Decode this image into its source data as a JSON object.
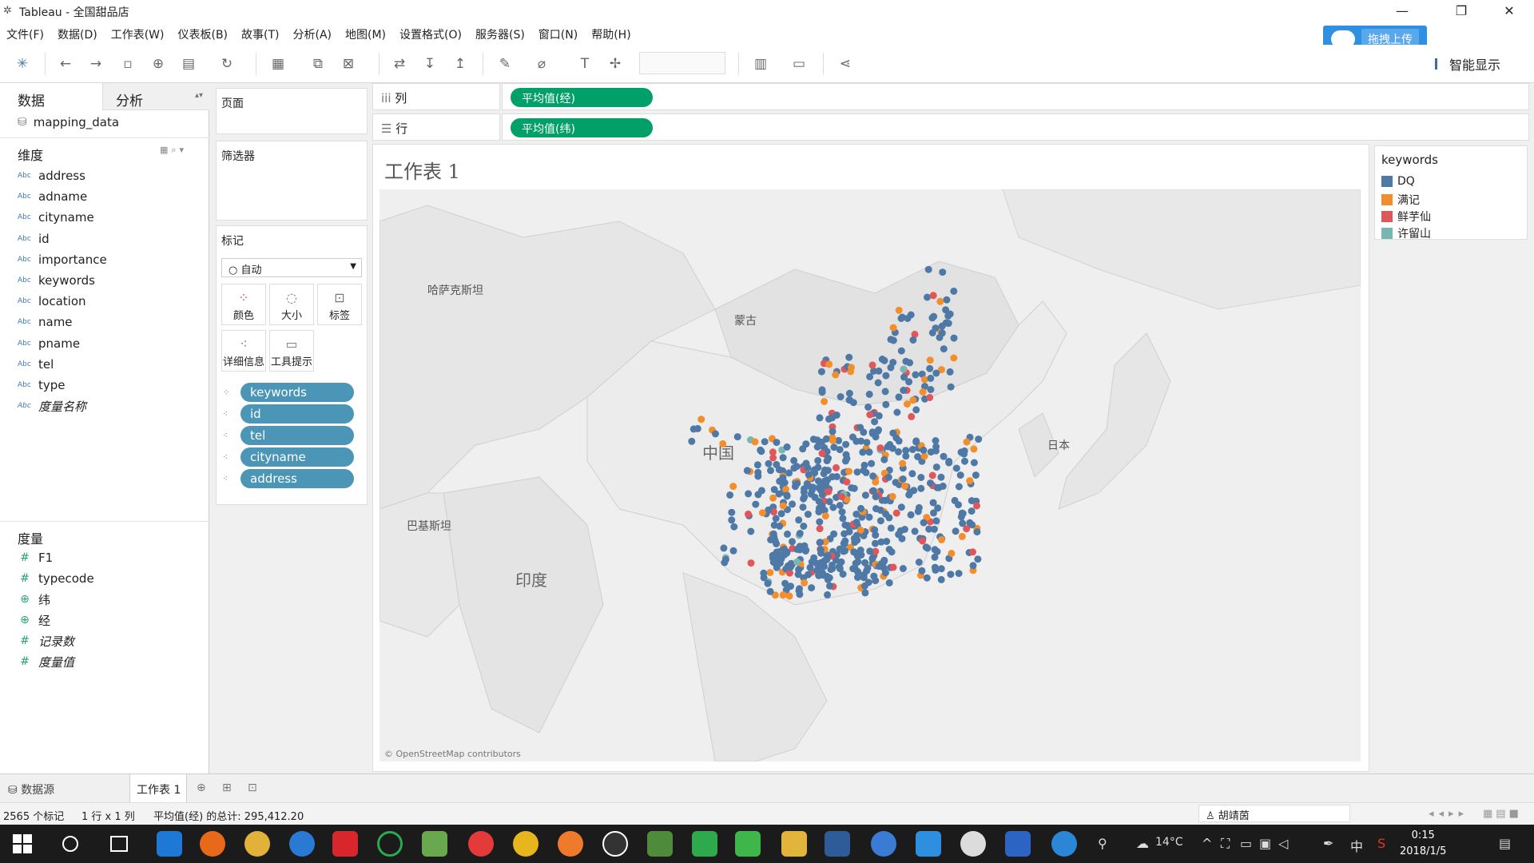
{
  "window": {
    "title": "Tableau - 全国甜品店"
  },
  "menu": [
    "文件(F)",
    "数据(D)",
    "工作表(W)",
    "仪表板(B)",
    "故事(T)",
    "分析(A)",
    "地图(M)",
    "设置格式(O)",
    "服务器(S)",
    "窗口(N)",
    "帮助(H)"
  ],
  "upload": {
    "label": "拖拽上传"
  },
  "toolbar": {
    "show_me": "智能显示"
  },
  "left_panel": {
    "tab_data": "数据",
    "tab_analysis": "分析",
    "datasource": "mapping_data",
    "dimensions_title": "维度",
    "dimensions": [
      "address",
      "adname",
      "cityname",
      "id",
      "importance",
      "keywords",
      "location",
      "name",
      "pname",
      "tel",
      "type",
      "度量名称"
    ],
    "dim_type_label": "Abc",
    "measures_title": "度量",
    "measures": [
      "F1",
      "typecode",
      "纬",
      "经",
      "记录数",
      "度量值"
    ]
  },
  "cards": {
    "pages": "页面",
    "filters": "筛选器",
    "marks": "标记",
    "marks_type": "自动",
    "buttons": {
      "color": "颜色",
      "size": "大小",
      "label": "标签",
      "detail": "详细信息",
      "tooltip": "工具提示"
    },
    "pills": [
      "keywords",
      "id",
      "tel",
      "cityname",
      "address"
    ]
  },
  "shelves": {
    "columns_label": "列",
    "columns_pill": "平均值(经)",
    "rows_label": "行",
    "rows_pill": "平均值(纬)"
  },
  "sheet": {
    "title": "工作表 1",
    "map_labels": {
      "kazakhstan": "哈萨克斯坦",
      "mongolia": "蒙古",
      "china": "中国",
      "japan": "日本",
      "pakistan": "巴基斯坦",
      "india": "印度"
    },
    "attribution": "© OpenStreetMap contributors"
  },
  "legend": {
    "title": "keywords",
    "items": [
      {
        "label": "DQ",
        "color": "#4e79a7"
      },
      {
        "label": "满记",
        "color": "#f28e2b"
      },
      {
        "label": "鲜芋仙",
        "color": "#e15759"
      },
      {
        "label": "许留山",
        "color": "#76b7b2"
      }
    ]
  },
  "sheet_tabs": {
    "datasource": "数据源",
    "sheet1": "工作表 1"
  },
  "status": {
    "marks": "2565 个标记",
    "rows_cols": "1 行 x 1 列",
    "sum": "平均值(经) 的总计: 295,412.20",
    "user": "胡靖茵"
  },
  "taskbar": {
    "weather": "14°C",
    "ime": "中",
    "time": "0:15",
    "date": "2018/1/5"
  }
}
